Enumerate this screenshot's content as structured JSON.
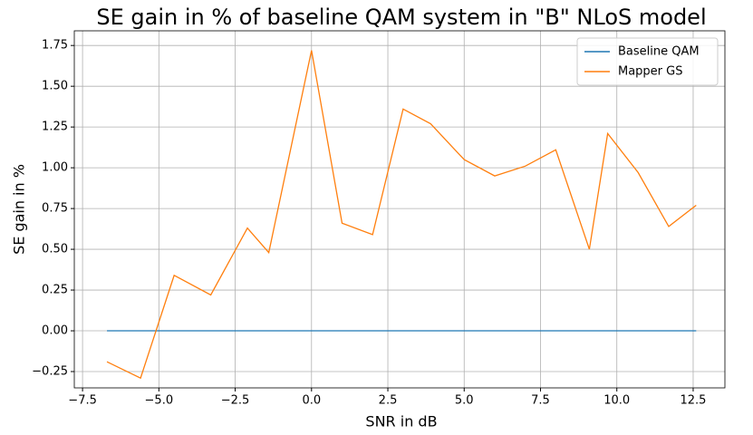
{
  "chart_data": {
    "type": "line",
    "title": "SE gain in % of baseline QAM system in \"B\" NLoS model",
    "x_label": "SNR in dB",
    "y_label": "SE gain in %",
    "x": [
      -6.7,
      -5.6,
      -4.5,
      -3.3,
      -2.1,
      -1.4,
      0,
      1,
      2,
      3,
      3.9,
      5,
      6,
      7,
      8,
      9.1,
      9.7,
      10.7,
      11.7,
      12.6
    ],
    "series": [
      {
        "name": "Baseline QAM",
        "color": "#1f77b4",
        "values": [
          0,
          0,
          0,
          0,
          0,
          0,
          0,
          0,
          0,
          0,
          0,
          0,
          0,
          0,
          0,
          0,
          0,
          0,
          0,
          0
        ]
      },
      {
        "name": "Mapper GS",
        "color": "#ff7f0e",
        "values": [
          -0.19,
          -0.29,
          0.34,
          0.22,
          0.63,
          0.48,
          1.72,
          0.66,
          0.59,
          1.36,
          1.27,
          1.05,
          0.95,
          1.01,
          1.11,
          0.5,
          1.21,
          0.97,
          0.64,
          0.77
        ]
      }
    ],
    "xlim": [
      -7.77,
      13.54
    ],
    "ylim": [
      -0.35,
      1.84
    ],
    "xticks": [
      {
        "value": -7.5,
        "label": "−7.5"
      },
      {
        "value": -5,
        "label": "−5.0"
      },
      {
        "value": -2.5,
        "label": "−2.5"
      },
      {
        "value": 0,
        "label": "0.0"
      },
      {
        "value": 2.5,
        "label": "2.5"
      },
      {
        "value": 5,
        "label": "5.0"
      },
      {
        "value": 7.5,
        "label": "7.5"
      },
      {
        "value": 10,
        "label": "10.0"
      },
      {
        "value": 12.5,
        "label": "12.5"
      }
    ],
    "yticks": [
      {
        "value": -0.25,
        "label": "−0.25"
      },
      {
        "value": 0,
        "label": "0.00"
      },
      {
        "value": 0.25,
        "label": "0.25"
      },
      {
        "value": 0.5,
        "label": "0.50"
      },
      {
        "value": 0.75,
        "label": "0.75"
      },
      {
        "value": 1,
        "label": "1.00"
      },
      {
        "value": 1.25,
        "label": "1.25"
      },
      {
        "value": 1.5,
        "label": "1.50"
      },
      {
        "value": 1.75,
        "label": "1.75"
      }
    ],
    "grid": true,
    "legend": "upper right"
  }
}
